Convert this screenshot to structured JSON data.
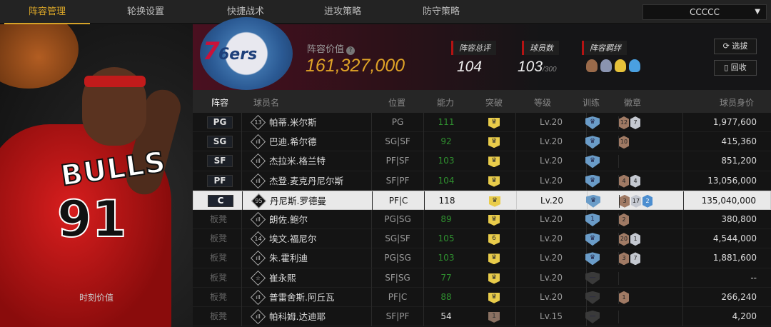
{
  "nav": {
    "tabs": [
      {
        "label": "阵容管理",
        "active": true
      },
      {
        "label": "轮换设置"
      },
      {
        "label": "快捷战术"
      },
      {
        "label": "进攻策略"
      },
      {
        "label": "防守策略"
      }
    ],
    "server_select": "CCCCC"
  },
  "left_panel": {
    "moment_value_label": "时刻价值"
  },
  "banner": {
    "team_logo": "76ers",
    "value_label": "阵容价值",
    "value": "161,327,000",
    "rating_label": "阵容总评",
    "rating": "104",
    "players_label": "球员数",
    "players": "103",
    "players_max": "/300",
    "bonds_label": "阵容羁绊",
    "bond_icons": [
      "bronze-bond-icon",
      "silver-bond-icon",
      "gold-bond-icon",
      "blue-bond-icon"
    ],
    "select_button": "选拔",
    "recycle_button": "回收"
  },
  "table": {
    "headers": [
      "阵容",
      "球员名",
      "位置",
      "能力",
      "突破",
      "等级",
      "训练",
      "徽章",
      "球员身价"
    ],
    "rows": [
      {
        "slot": "PG",
        "icon": "13",
        "name": "帕蒂.米尔斯",
        "pos": "PG",
        "ability": "111",
        "break": "crown",
        "level": "Lv.20",
        "training": "crown",
        "badges": [
          {
            "t": "bronze",
            "n": "12"
          },
          {
            "t": "silver",
            "n": "7"
          }
        ],
        "price": "1,977,600"
      },
      {
        "slot": "SG",
        "icon": "bars",
        "name": "巴迪.希尔德",
        "pos": "SG|SF",
        "ability": "92",
        "break": "crown",
        "level": "Lv.20",
        "training": "crown",
        "badges": [
          {
            "t": "bronze",
            "n": "10"
          }
        ],
        "price": "415,360"
      },
      {
        "slot": "SF",
        "icon": "bars",
        "name": "杰拉米.格兰特",
        "pos": "PF|SF",
        "ability": "103",
        "break": "crown",
        "level": "Lv.20",
        "training": "crown",
        "badges": [],
        "price": "851,200"
      },
      {
        "slot": "PF",
        "icon": "bars",
        "name": "杰登.麦克丹尼尔斯",
        "pos": "SF|PF",
        "ability": "104",
        "break": "crown",
        "level": "Lv.20",
        "training": "crown",
        "badges": [
          {
            "t": "bronze",
            "n": "4"
          },
          {
            "t": "silver",
            "n": "4"
          }
        ],
        "price": "13,056,000"
      },
      {
        "slot": "C",
        "icon": "95",
        "name": "丹尼斯.罗德曼",
        "pos": "PF|C",
        "ability": "118",
        "break": "crown",
        "level": "Lv.20",
        "training": "crown",
        "badges": [
          {
            "t": "bronze",
            "n": "3"
          },
          {
            "t": "silver",
            "n": "17"
          },
          {
            "t": "blue",
            "n": "2"
          }
        ],
        "price": "135,040,000",
        "selected": true
      },
      {
        "slot": "板凳",
        "icon": "bars",
        "name": "朗佐.鲍尔",
        "pos": "PG|SG",
        "ability": "89",
        "break": "crown",
        "level": "Lv.20",
        "training": "1",
        "badges": [
          {
            "t": "bronze",
            "n": "2"
          }
        ],
        "price": "380,800"
      },
      {
        "slot": "板凳",
        "icon": "14",
        "name": "埃文.福尼尔",
        "pos": "SG|SF",
        "ability": "105",
        "break": "6",
        "level": "Lv.20",
        "training": "crown",
        "badges": [
          {
            "t": "bronze",
            "n": "20"
          },
          {
            "t": "silver",
            "n": "1"
          }
        ],
        "price": "4,544,000"
      },
      {
        "slot": "板凳",
        "icon": "bars",
        "name": "朱.霍利迪",
        "pos": "PG|SG",
        "ability": "103",
        "break": "crown",
        "level": "Lv.20",
        "training": "crown",
        "badges": [
          {
            "t": "bronze",
            "n": "3"
          },
          {
            "t": "silver",
            "n": "7"
          }
        ],
        "price": "1,881,600"
      },
      {
        "slot": "板凳",
        "icon": "star",
        "name": "崔永熙",
        "pos": "SF|SG",
        "ability": "77",
        "break": "crown",
        "level": "Lv.20",
        "training": "none",
        "badges": [],
        "price": "--"
      },
      {
        "slot": "板凳",
        "icon": "bars",
        "name": "普雷舍斯.阿丘瓦",
        "pos": "PF|C",
        "ability": "88",
        "break": "crown",
        "level": "Lv.20",
        "training": "none",
        "badges": [
          {
            "t": "bronze",
            "n": "1"
          }
        ],
        "price": "266,240"
      },
      {
        "slot": "板凳",
        "icon": "bars",
        "name": "帕科姆.达迪耶",
        "pos": "SF|PF",
        "ability": "54",
        "break": "1",
        "level": "Lv.15",
        "training": "none",
        "badges": [],
        "price": "4,200"
      }
    ]
  },
  "colors": {
    "accent": "#d6a328",
    "ability_green": "#2f8f2f",
    "breakthrough_gold": "#e9cc4a",
    "training_blue": "#6a9cc8"
  }
}
